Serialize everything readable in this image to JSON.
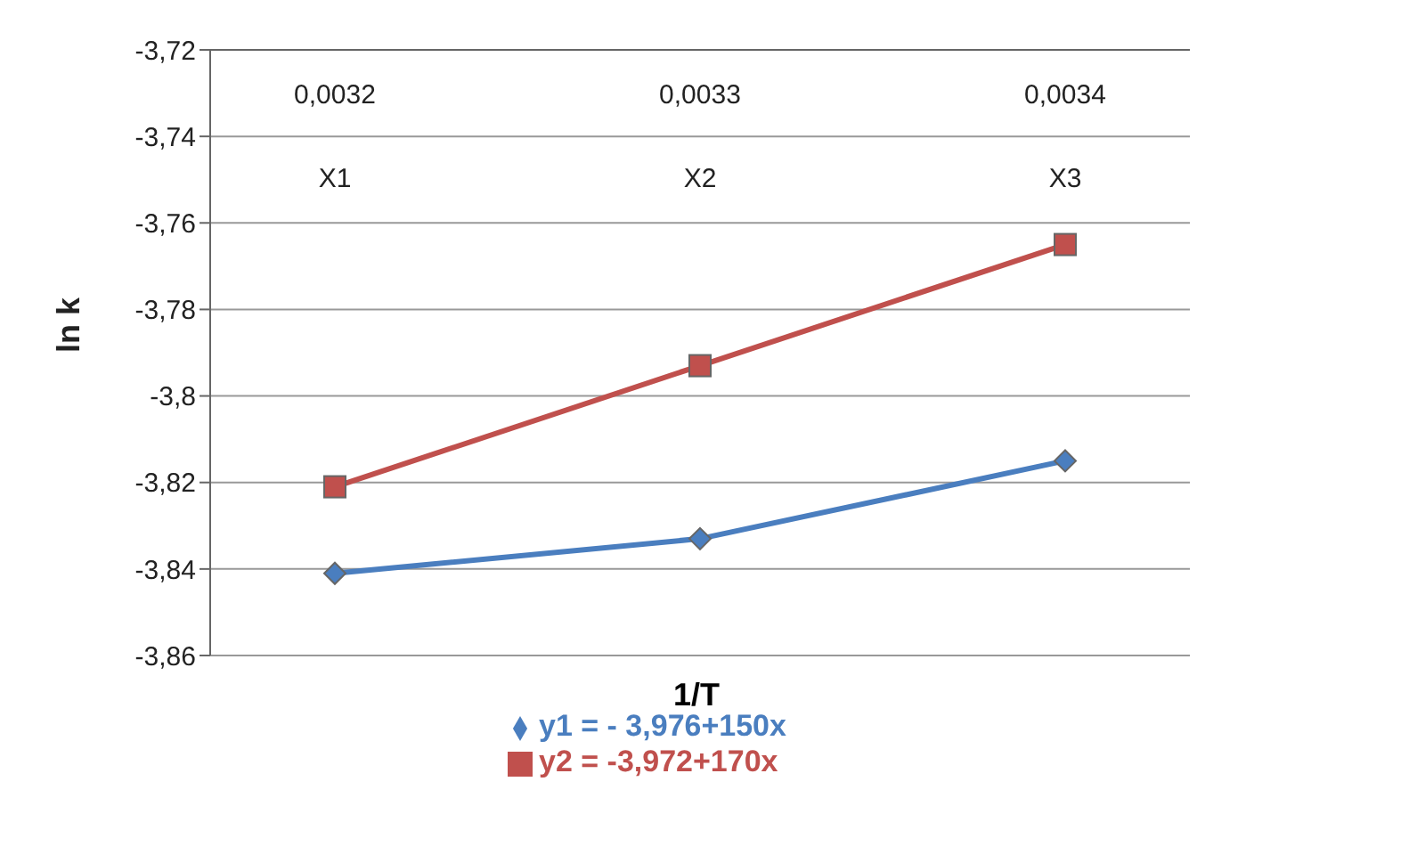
{
  "chart_data": {
    "type": "line",
    "xlabel": "1/T",
    "ylabel": "ln k",
    "categories": [
      "0,0032",
      "0,0033",
      "0,0034"
    ],
    "series": [
      {
        "name": "y1 = - 3,976+150x",
        "color": "#4a7ebf",
        "values": [
          -3.841,
          -3.833,
          -3.815
        ],
        "marker": "diamond"
      },
      {
        "name": "y2 = -3,972+170x",
        "color": "#c0504d",
        "values": [
          -3.821,
          -3.793,
          -3.765
        ],
        "marker": "square"
      }
    ],
    "annotations": [
      "X1",
      "X2",
      "X3"
    ],
    "ylim": [
      -3.86,
      -3.72
    ],
    "yticks": [
      {
        "value": -3.86,
        "label": "-3,86"
      },
      {
        "value": -3.84,
        "label": "-3,84"
      },
      {
        "value": -3.82,
        "label": "-3,82"
      },
      {
        "value": -3.8,
        "label": "-3,8"
      },
      {
        "value": -3.78,
        "label": "-3,78"
      },
      {
        "value": -3.76,
        "label": "-3,76"
      },
      {
        "value": -3.74,
        "label": "-3,74"
      },
      {
        "value": -3.72,
        "label": "-3,72"
      }
    ],
    "grid": "y",
    "legend": "bottom"
  }
}
